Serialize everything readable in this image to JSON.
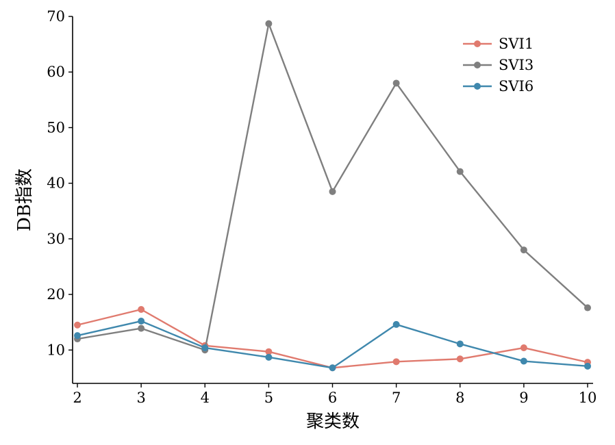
{
  "chart_data": {
    "type": "line",
    "title": "",
    "xlabel": "聚类数",
    "ylabel": "DB指数",
    "x": [
      2,
      3,
      4,
      5,
      6,
      7,
      8,
      9,
      10
    ],
    "xlim": [
      2,
      10
    ],
    "ylim": [
      4,
      70
    ],
    "yticks": [
      10,
      20,
      30,
      40,
      50,
      60,
      70
    ],
    "grid": false,
    "legend_position": "top-right",
    "series": [
      {
        "name": "SVI1",
        "color": "#e07a6e",
        "values": [
          14.5,
          17.3,
          10.8,
          9.7,
          6.8,
          7.9,
          8.4,
          10.4,
          7.8
        ]
      },
      {
        "name": "SVI3",
        "color": "#7f7f7f",
        "values": [
          12.0,
          13.9,
          10.0,
          68.7,
          38.5,
          58.0,
          42.1,
          28.0,
          17.6
        ]
      },
      {
        "name": "SVI6",
        "color": "#3f88ad",
        "values": [
          12.6,
          15.2,
          10.4,
          8.7,
          6.8,
          14.6,
          11.1,
          8.0,
          7.1
        ]
      }
    ]
  }
}
